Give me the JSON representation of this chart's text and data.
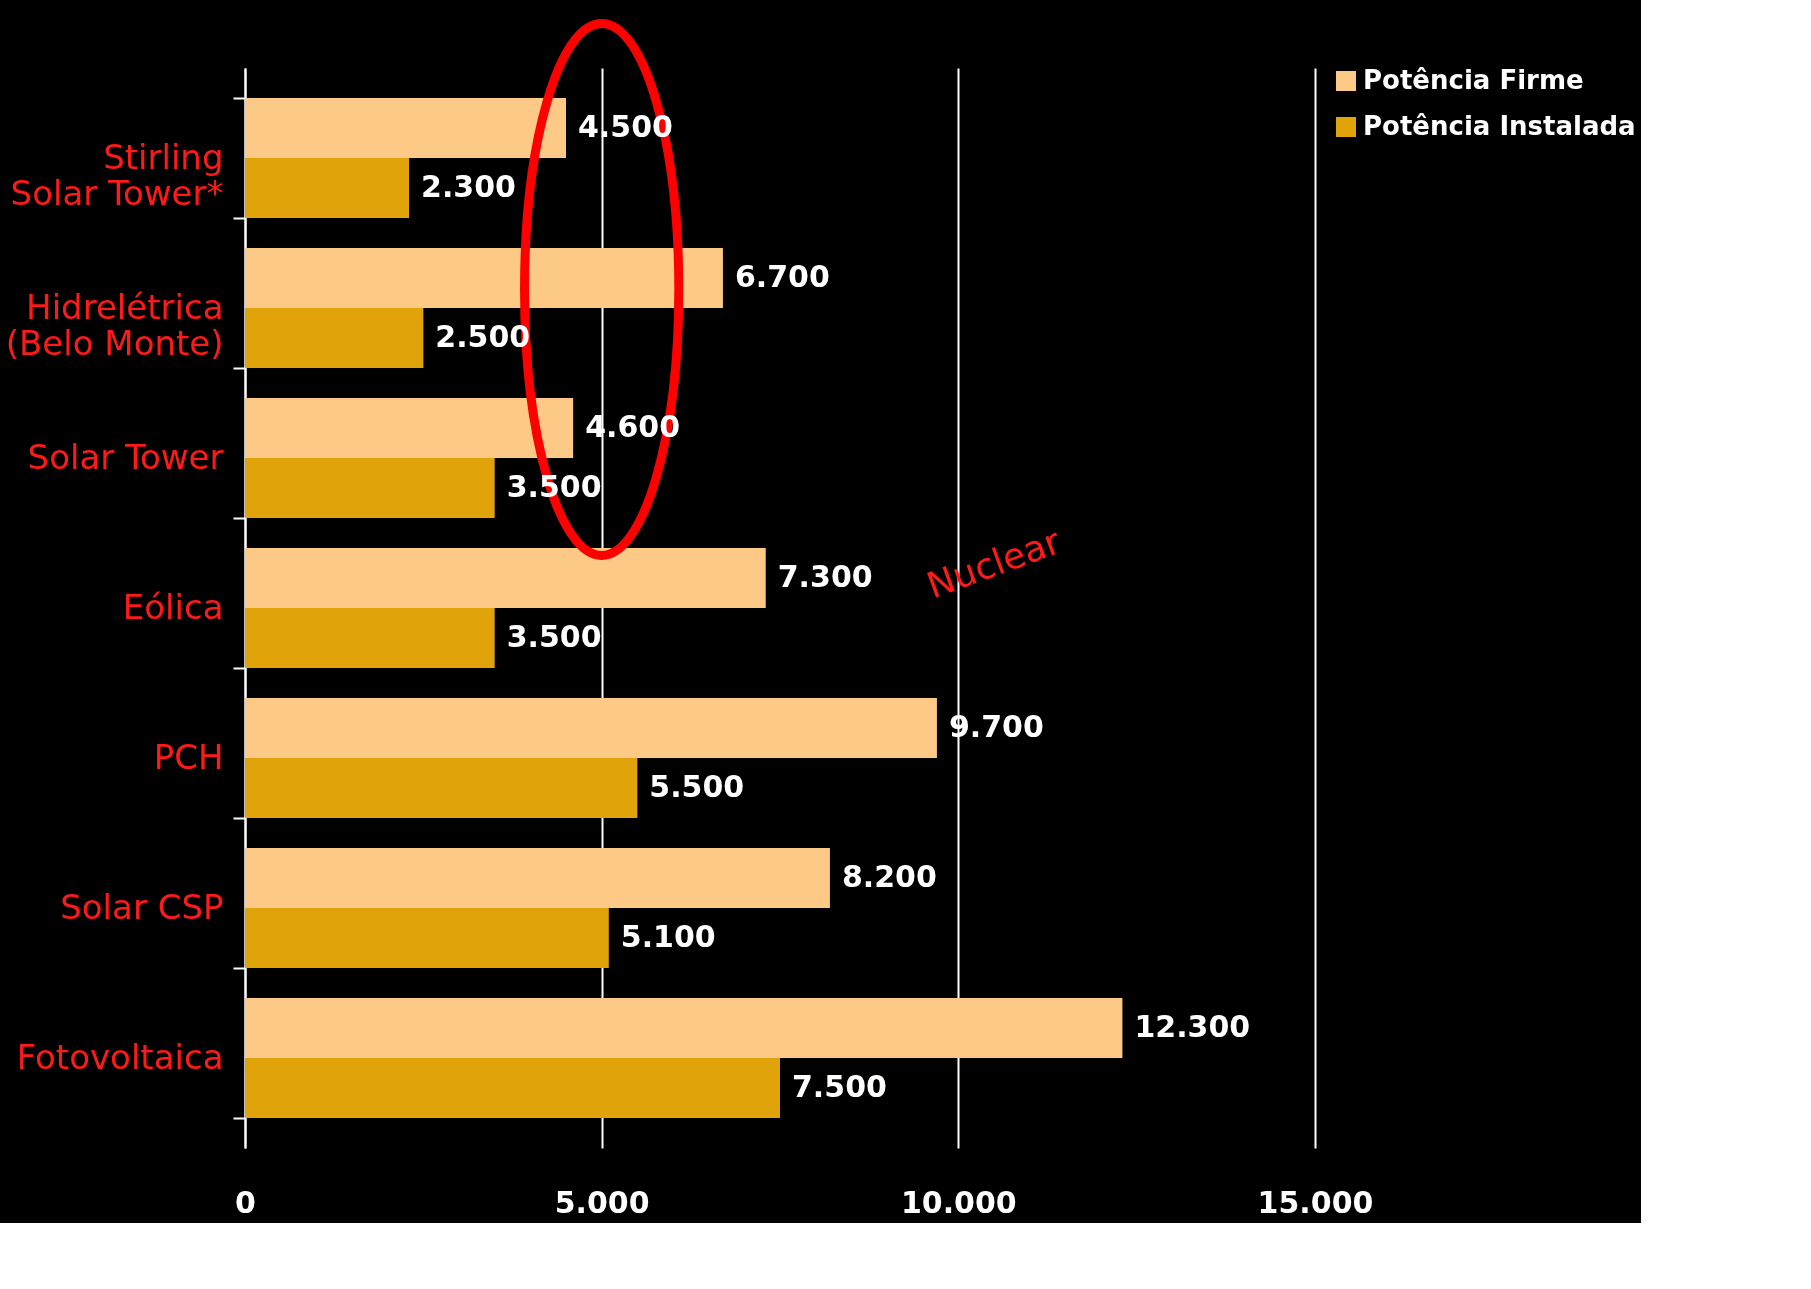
{
  "chart_data": {
    "type": "bar",
    "orientation": "horizontal",
    "categories": [
      "Stirling Solar Tower*",
      "Hidrelétrica (Belo Monte)",
      "Solar Tower",
      "Eólica",
      "PCH",
      "Solar CSP",
      "Fotovoltaica"
    ],
    "series": [
      {
        "name": "Potência Firme",
        "color": "#fdc986",
        "values": [
          4500,
          6700,
          4600,
          7300,
          9700,
          8200,
          12300
        ],
        "value_labels": [
          "4.500",
          "6.700",
          "4.600",
          "7.300",
          "9.700",
          "8.200",
          "12.300"
        ]
      },
      {
        "name": "Potência Instalada",
        "color": "#e0a30a",
        "values": [
          2300,
          2500,
          3500,
          3500,
          5500,
          5100,
          7500
        ],
        "value_labels": [
          "2.300",
          "2.500",
          "3.500",
          "3.500",
          "5.500",
          "5.100",
          "7.500"
        ]
      }
    ],
    "xlim": [
      0,
      15000
    ],
    "xticks": [
      {
        "value": 0,
        "label": "0"
      },
      {
        "value": 5000,
        "label": "5.000"
      },
      {
        "value": 10000,
        "label": "10.000"
      },
      {
        "value": 15000,
        "label": "15.000"
      }
    ],
    "grid": "x",
    "legend": "right",
    "annotations": [
      "Nuclear"
    ]
  }
}
